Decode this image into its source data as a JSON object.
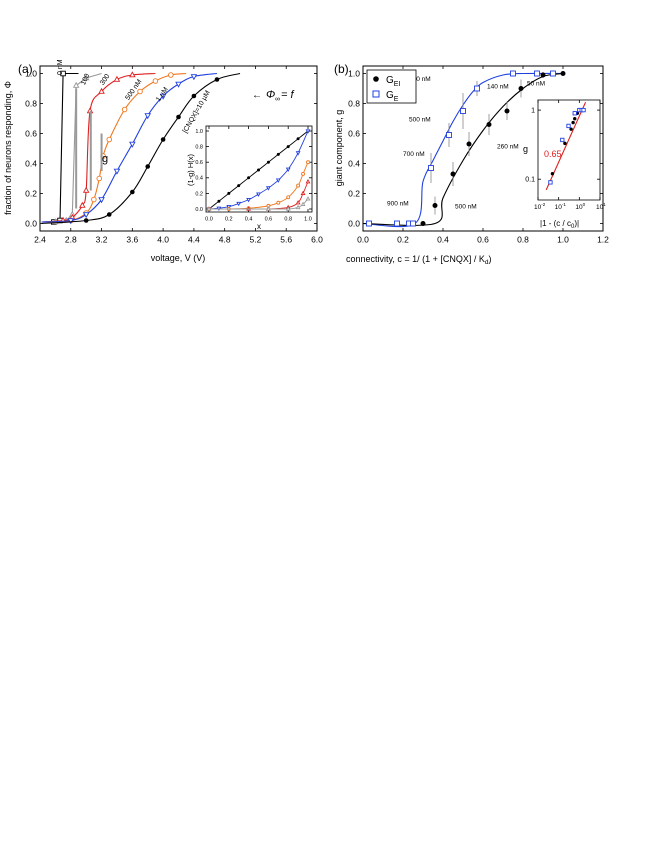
{
  "chart_data": [
    {
      "panel": "(a)",
      "type": "line",
      "xlabel": "voltage, V (V)",
      "ylabel": "fraction of neurons responding, Φ",
      "xlim": [
        2.4,
        6.0
      ],
      "ylim": [
        -0.05,
        1.05
      ],
      "xticks": [
        2.4,
        2.8,
        3.2,
        3.6,
        4.0,
        4.4,
        4.8,
        5.2,
        5.6,
        6.0
      ],
      "xtick_labels": [
        "2.4",
        "2.8",
        "3.2",
        "3.6",
        "4.0",
        "4.4",
        "4.8",
        "5.2",
        "5.6",
        "6.0"
      ],
      "yticks": [
        0.0,
        0.2,
        0.4,
        0.6,
        0.8,
        1.0
      ],
      "ytick_labels": [
        "0.0",
        "0.2",
        "0.4",
        "0.6",
        "0.8",
        "1.0"
      ],
      "series": [
        {
          "name": "0 nM",
          "color": "#000000",
          "marker": "square",
          "x": [
            2.42,
            2.58,
            2.66,
            2.7,
            2.9
          ],
          "y": [
            0.01,
            0.01,
            0.02,
            1.0,
            1.0
          ]
        },
        {
          "name": "100",
          "color": "#999999",
          "marker": "triangle",
          "x": [
            2.42,
            2.6,
            2.74,
            2.82,
            2.87,
            3.0,
            3.2
          ],
          "y": [
            0.01,
            0.01,
            0.02,
            0.06,
            0.92,
            0.97,
            1.0
          ]
        },
        {
          "name": "300",
          "color": "#e02020",
          "marker": "triangle",
          "x": [
            2.42,
            2.7,
            2.82,
            2.95,
            3.0,
            3.05,
            3.2,
            3.4,
            3.6,
            3.9
          ],
          "y": [
            0.01,
            0.02,
            0.04,
            0.12,
            0.22,
            0.75,
            0.88,
            0.96,
            0.99,
            1.0
          ]
        },
        {
          "name": "500 nM",
          "color": "#f07820",
          "marker": "circle",
          "x": [
            2.42,
            2.8,
            3.0,
            3.1,
            3.17,
            3.22,
            3.3,
            3.5,
            3.7,
            3.9,
            4.1,
            4.3
          ],
          "y": [
            0.01,
            0.02,
            0.07,
            0.16,
            0.3,
            0.45,
            0.56,
            0.76,
            0.88,
            0.95,
            0.99,
            1.0
          ]
        },
        {
          "name": "1 µM",
          "color": "#2040e0",
          "marker": "triangle-down",
          "x": [
            2.42,
            2.8,
            3.0,
            3.2,
            3.4,
            3.6,
            3.8,
            4.0,
            4.2,
            4.4,
            4.7
          ],
          "y": [
            0.01,
            0.02,
            0.06,
            0.16,
            0.35,
            0.53,
            0.72,
            0.85,
            0.93,
            0.98,
            1.0
          ]
        },
        {
          "name": "[CNQX]=10 µM",
          "color": "#000000",
          "marker": "filled-circle",
          "x": [
            2.42,
            3.0,
            3.3,
            3.6,
            3.8,
            4.0,
            4.2,
            4.4,
            4.7,
            5.0
          ],
          "y": [
            0.0,
            0.02,
            0.06,
            0.21,
            0.38,
            0.56,
            0.71,
            0.85,
            0.96,
            1.0
          ]
        }
      ],
      "annotations": {
        "g_label": "g",
        "phi_label": "Φ",
        "phi_sub": "∞",
        "phi_eq": " = f",
        "panel_tag": "(a)"
      },
      "inset": {
        "xlabel": "x",
        "ylabel": "(1-g) H(x)",
        "xlim": [
          0,
          1
        ],
        "ylim": [
          0,
          1
        ],
        "xticks": [
          0.0,
          0.2,
          0.4,
          0.6,
          0.8,
          1.0
        ],
        "xtick_labels": [
          "0.0",
          "0.2",
          "0.4",
          "0.6",
          "0.8",
          "1.0"
        ],
        "yticks": [
          0.0,
          0.2,
          0.4,
          0.6,
          0.8,
          1.0
        ],
        "ytick_labels": [
          "0.0",
          "0.2",
          "0.4",
          "0.6",
          "0.8",
          "1.0"
        ],
        "series": [
          {
            "color": "#000000",
            "marker": "filled-circle",
            "x": [
              0,
              0.1,
              0.2,
              0.3,
              0.4,
              0.5,
              0.6,
              0.7,
              0.8,
              0.9,
              1.0
            ],
            "y": [
              0,
              0.1,
              0.2,
              0.3,
              0.4,
              0.5,
              0.6,
              0.7,
              0.8,
              0.9,
              1.0
            ]
          },
          {
            "color": "#2040e0",
            "marker": "triangle-down",
            "x": [
              0,
              0.1,
              0.2,
              0.3,
              0.4,
              0.5,
              0.6,
              0.7,
              0.8,
              0.9,
              1.0
            ],
            "y": [
              0.0,
              0.01,
              0.03,
              0.07,
              0.12,
              0.19,
              0.27,
              0.37,
              0.51,
              0.72,
              1.0
            ]
          },
          {
            "color": "#f07820",
            "marker": "circle",
            "x": [
              0,
              0.2,
              0.4,
              0.6,
              0.7,
              0.8,
              0.9,
              0.95,
              1.0
            ],
            "y": [
              0.0,
              0.0,
              0.01,
              0.04,
              0.08,
              0.15,
              0.3,
              0.45,
              0.6
            ]
          },
          {
            "color": "#e02020",
            "marker": "triangle",
            "x": [
              0,
              0.4,
              0.6,
              0.8,
              0.9,
              0.95,
              1.0
            ],
            "y": [
              0.0,
              0.0,
              0.0,
              0.02,
              0.08,
              0.2,
              0.35
            ]
          },
          {
            "color": "#999999",
            "marker": "triangle",
            "x": [
              0,
              0.6,
              0.8,
              0.9,
              0.95,
              1.0
            ],
            "y": [
              0.0,
              0.0,
              0.0,
              0.02,
              0.06,
              0.13
            ]
          }
        ]
      }
    },
    {
      "panel": "(b)",
      "type": "line",
      "xlabel": "connectivity, c = 1/ (1 + [CNQX] / K",
      "xlabel_sub": "d",
      "xlabel_end": ")",
      "ylabel": "giant component, g",
      "xlim": [
        0.0,
        1.2
      ],
      "ylim": [
        -0.05,
        1.05
      ],
      "xticks": [
        0.0,
        0.2,
        0.4,
        0.6,
        0.8,
        1.0,
        1.2
      ],
      "xtick_labels": [
        "0.0",
        "0.2",
        "0.4",
        "0.6",
        "0.8",
        "1.0",
        "1.2"
      ],
      "yticks": [
        0.0,
        0.2,
        0.4,
        0.6,
        0.8,
        1.0
      ],
      "ytick_labels": [
        "0.0",
        "0.2",
        "0.4",
        "0.6",
        "0.8",
        "1.0"
      ],
      "legend": {
        "position": "top-left",
        "items": [
          {
            "label": "G",
            "sub": "EI",
            "color": "#000000",
            "marker": "filled-circle"
          },
          {
            "label": "G",
            "sub": "E",
            "color": "#2040e0",
            "marker": "square"
          }
        ]
      },
      "series": [
        {
          "name": "G_EI",
          "color": "#000000",
          "marker": "filled-circle",
          "x": [
            0.24,
            0.3,
            0.36,
            0.45,
            0.53,
            0.63,
            0.72,
            0.79,
            0.9,
            1.0
          ],
          "y": [
            0.0,
            0.0,
            0.12,
            0.33,
            0.53,
            0.66,
            0.75,
            0.9,
            0.99,
            1.0
          ],
          "err": [
            0,
            0,
            0.06,
            0.08,
            0.08,
            0.07,
            0.06,
            0.06,
            0.02,
            0
          ]
        },
        {
          "name": "G_E",
          "color": "#2040e0",
          "marker": "square",
          "x": [
            0.03,
            0.17,
            0.23,
            0.25,
            0.34,
            0.43,
            0.5,
            0.57,
            0.75,
            0.87,
            0.95
          ],
          "y": [
            0.0,
            0.0,
            0.0,
            0.0,
            0.37,
            0.59,
            0.75,
            0.9,
            1.0,
            1.0,
            1.0
          ],
          "err": [
            0,
            0,
            0,
            0,
            0.1,
            0.08,
            0.12,
            0.05,
            0,
            0,
            0
          ]
        }
      ],
      "fit_EI": {
        "x": [
          0.0,
          0.36,
          0.4,
          0.5,
          0.6,
          0.7,
          0.8,
          0.9,
          1.0
        ],
        "y": [
          0.0,
          0.0,
          0.17,
          0.42,
          0.62,
          0.78,
          0.9,
          0.98,
          1.0
        ]
      },
      "fit_E": {
        "x": [
          0.0,
          0.26,
          0.3,
          0.35,
          0.4,
          0.45,
          0.5,
          0.55,
          0.6,
          0.7,
          0.8,
          1.0
        ],
        "y": [
          0.0,
          0.0,
          0.28,
          0.42,
          0.55,
          0.68,
          0.79,
          0.88,
          0.94,
          0.99,
          1.0,
          1.0
        ]
      },
      "annotations": [
        {
          "text": "300 nM",
          "x": 0.23,
          "y": 0.95
        },
        {
          "text": "140 nM",
          "x": 0.62,
          "y": 0.9
        },
        {
          "text": "50 nM",
          "x": 0.82,
          "y": 0.92
        },
        {
          "text": "500 nM",
          "x": 0.23,
          "y": 0.68
        },
        {
          "text": "700 nM",
          "x": 0.2,
          "y": 0.45
        },
        {
          "text": "260 nM",
          "x": 0.67,
          "y": 0.5
        },
        {
          "text": "900 nM",
          "x": 0.12,
          "y": 0.12
        },
        {
          "text": "500 nM",
          "x": 0.46,
          "y": 0.1
        }
      ],
      "inset": {
        "ylabel": "g",
        "xlabel": "|1 - (c / c",
        "xlabel_sub": "0",
        "xlabel_end": ")|",
        "xscale": "log",
        "yscale": "log",
        "xlim": [
          0.01,
          10
        ],
        "ylim": [
          0.05,
          1.4
        ],
        "xticks": [
          0.01,
          0.1,
          1,
          10
        ],
        "xtick_bases": [
          "10",
          "10",
          "10",
          "10"
        ],
        "xtick_exps": [
          "-2",
          "-1",
          "0",
          "1"
        ],
        "yticks": [
          0.1,
          1
        ],
        "ytick_labels": [
          "0.1",
          "1"
        ],
        "slope_label": "0.65",
        "fit_line": {
          "x": [
            0.025,
            2.0
          ],
          "y": [
            0.07,
            1.3
          ]
        },
        "series": [
          {
            "color": "#000000",
            "marker": "filled-circle",
            "x": [
              0.05,
              0.2,
              0.4,
              0.5,
              0.6,
              0.8
            ],
            "y": [
              0.12,
              0.33,
              0.53,
              0.66,
              0.75,
              0.9
            ]
          },
          {
            "color": "#2040e0",
            "marker": "square",
            "x": [
              0.04,
              0.15,
              0.3,
              0.6,
              1.0,
              1.3,
              1.6
            ],
            "y": [
              0.09,
              0.37,
              0.59,
              0.9,
              1.0,
              1.0,
              1.0
            ]
          }
        ]
      }
    }
  ]
}
